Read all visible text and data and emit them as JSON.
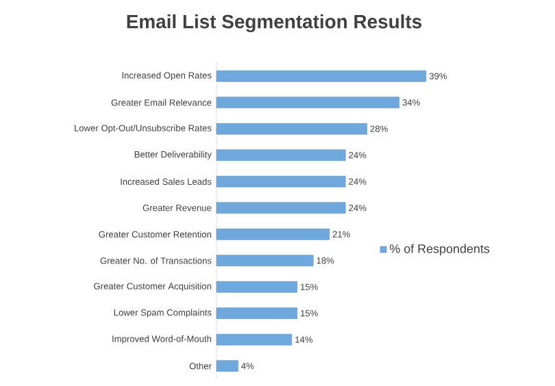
{
  "chart_data": {
    "type": "bar",
    "orientation": "horizontal",
    "title": "Email List Segmentation Results",
    "categories": [
      "Increased Open Rates",
      "Greater Email Relevance",
      "Lower Opt-Out/Unsubscribe Rates",
      "Better Deliverability",
      "Increased Sales Leads",
      "Greater Revenue",
      "Greater Customer Retention",
      "Greater No. of Transactions",
      "Greater Customer Acquisition",
      "Lower Spam Complaints",
      "Improved Word-of-Mouth",
      "Other"
    ],
    "series": [
      {
        "name": "% of Respondents",
        "color": "#6fa8dc",
        "values": [
          39,
          34,
          28,
          24,
          24,
          24,
          21,
          18,
          15,
          15,
          14,
          4
        ],
        "value_labels": [
          "39%",
          "34%",
          "28%",
          "24%",
          "24%",
          "24%",
          "21%",
          "18%",
          "15%",
          "15%",
          "14%",
          "4%"
        ]
      }
    ],
    "legend": "right"
  }
}
